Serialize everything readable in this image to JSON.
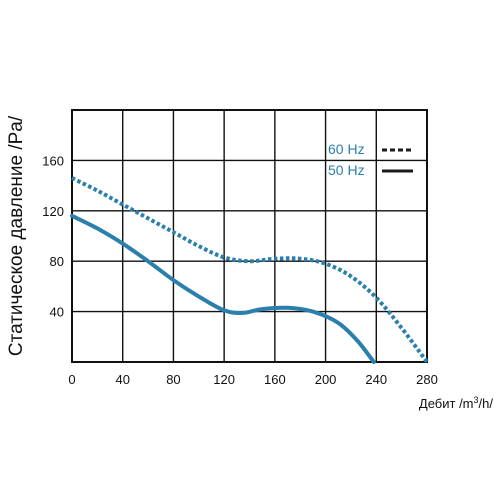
{
  "chart_data": {
    "type": "line",
    "xlabel": "Дебит /m³/h/",
    "ylabel": "Статическое давление /Pa/",
    "xlim": [
      0,
      280
    ],
    "ylim": [
      0,
      200
    ],
    "x_ticks": [
      0,
      40,
      80,
      120,
      160,
      200,
      240,
      280
    ],
    "y_ticks": [
      40,
      80,
      120,
      160
    ],
    "grid": true,
    "legend_position": "top-right",
    "series": [
      {
        "name": "60 Hz",
        "style": "dotted",
        "color": "#2a7fad",
        "points": [
          [
            0,
            146
          ],
          [
            20,
            136
          ],
          [
            40,
            125
          ],
          [
            60,
            114
          ],
          [
            80,
            103
          ],
          [
            100,
            92
          ],
          [
            120,
            83
          ],
          [
            140,
            80
          ],
          [
            160,
            82
          ],
          [
            180,
            82
          ],
          [
            200,
            78
          ],
          [
            220,
            68
          ],
          [
            240,
            51
          ],
          [
            260,
            27
          ],
          [
            280,
            0
          ]
        ]
      },
      {
        "name": "50 Hz",
        "style": "solid",
        "color": "#2a7fad",
        "points": [
          [
            0,
            116
          ],
          [
            20,
            106
          ],
          [
            40,
            94
          ],
          [
            60,
            80
          ],
          [
            80,
            65
          ],
          [
            100,
            52
          ],
          [
            120,
            41
          ],
          [
            135,
            39
          ],
          [
            150,
            42
          ],
          [
            170,
            43
          ],
          [
            190,
            40
          ],
          [
            210,
            31
          ],
          [
            225,
            17
          ],
          [
            238,
            0
          ]
        ]
      }
    ]
  },
  "legend": {
    "entries": [
      {
        "label": "60 Hz",
        "line_color": "#1a1a1a",
        "text_color": "#2a7fad",
        "style": "dotted"
      },
      {
        "label": "50 Hz",
        "line_color": "#1a1a1a",
        "text_color": "#2a7fad",
        "style": "solid"
      }
    ]
  }
}
